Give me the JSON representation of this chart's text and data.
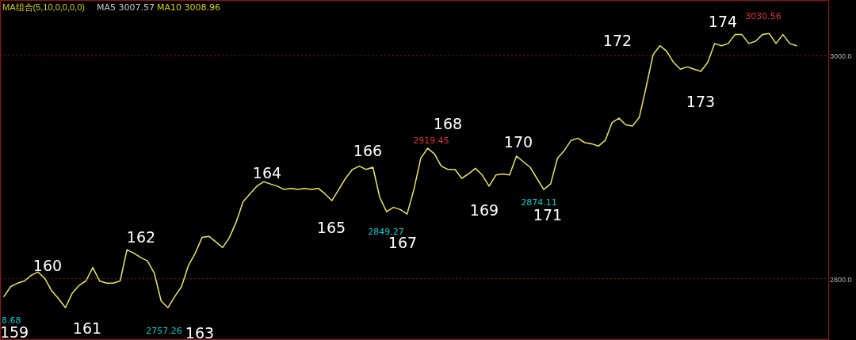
{
  "chart_data": {
    "type": "line",
    "title": "MA组合(5,10,0,0,0,0)",
    "categories": [
      null,
      null,
      null,
      null,
      null,
      null,
      null,
      null,
      null,
      null,
      null,
      null,
      null,
      null,
      null,
      null,
      null,
      null,
      null,
      null,
      null,
      null,
      null,
      null,
      null,
      null,
      null,
      null,
      null,
      null,
      null,
      null,
      null,
      null,
      null,
      null,
      null,
      null,
      null,
      null,
      null,
      null,
      null,
      null,
      null,
      null,
      null,
      null,
      null,
      null,
      null,
      null,
      null,
      null,
      null,
      null,
      null,
      null,
      null,
      null,
      null,
      null,
      null,
      null,
      null,
      null,
      null,
      null,
      null,
      null,
      null,
      null,
      null,
      null,
      null,
      null,
      null,
      null,
      null,
      null,
      null,
      null,
      null,
      null,
      null,
      null,
      null,
      null,
      null,
      null,
      null,
      null,
      null,
      null,
      null,
      null,
      null,
      null,
      null,
      null,
      null,
      null,
      null,
      null,
      null,
      null,
      null,
      null,
      null,
      null,
      null,
      null,
      null,
      null,
      null,
      null,
      null
    ],
    "series": [
      {
        "color": "#e8e860",
        "values": [
          2784,
          2793,
          2796,
          2798,
          2803,
          2806,
          2800,
          2789,
          2782,
          2774,
          2787,
          2794,
          2798,
          2810,
          2798,
          2796,
          2796,
          2798,
          2826,
          2823,
          2819,
          2816,
          2805,
          2780,
          2774,
          2784,
          2793,
          2812,
          2823,
          2837,
          2838,
          2833,
          2828,
          2837,
          2851,
          2869,
          2876,
          2883,
          2887,
          2885,
          2883,
          2880,
          2881,
          2880,
          2881,
          2880,
          2881,
          2876,
          2870,
          2880,
          2890,
          2898,
          2901,
          2898,
          2900,
          2873,
          2860,
          2864,
          2862,
          2858,
          2880,
          2908,
          2917,
          2912,
          2901,
          2898,
          2898,
          2890,
          2894,
          2899,
          2893,
          2883,
          2893,
          2894,
          2893,
          2910,
          2905,
          2900,
          2890,
          2880,
          2885,
          2908,
          2915,
          2924,
          2926,
          2922,
          2921,
          2919,
          2924,
          2940,
          2944,
          2938,
          2937,
          2945,
          2972,
          3001,
          3009,
          3004,
          2994,
          2988,
          2990,
          2988,
          2986,
          2994,
          3011,
          3009,
          3011,
          3019,
          3019,
          3011,
          3013,
          3019,
          3020,
          3011,
          3019,
          3011,
          3009
        ]
      }
    ],
    "ylim": [
      2745,
      3050
    ],
    "yticks": [
      {
        "value": 3000,
        "label": "3000.0"
      },
      {
        "value": 2800,
        "label": "2800.0"
      }
    ],
    "grid": "y",
    "annotations": [
      "MA5 3007.57",
      "MA10 3008.96",
      "159",
      "160",
      "161",
      "162",
      "163",
      "164",
      "165",
      "166",
      "167",
      "168",
      "169",
      "170",
      "171",
      "172",
      "173",
      "174",
      "8.68",
      "2757.26",
      "2849.27",
      "2919.45",
      "2874.11",
      "3030.56"
    ]
  }
}
